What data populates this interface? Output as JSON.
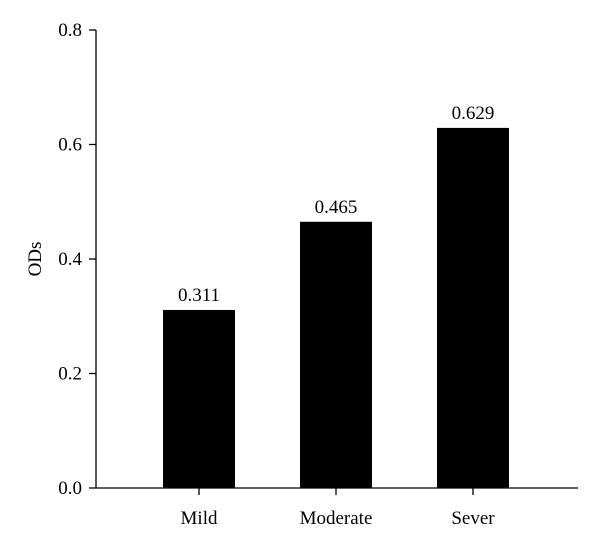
{
  "chart_data": {
    "type": "bar",
    "categories": [
      "Mild",
      "Moderate",
      "Sever"
    ],
    "values": [
      0.311,
      0.465,
      0.629
    ],
    "value_labels": [
      "0.311",
      "0.465",
      "0.629"
    ],
    "title": "",
    "xlabel": "",
    "ylabel": "ODs",
    "ylim": [
      0,
      0.8
    ],
    "yticks": [
      "0.0",
      "0.2",
      "0.4",
      "0.6",
      "0.8"
    ],
    "ytick_values": [
      0,
      0.2,
      0.4,
      0.6,
      0.8
    ],
    "grid": false,
    "legend": "none",
    "colors": {
      "bar": "#000000",
      "axis": "#000000"
    }
  }
}
